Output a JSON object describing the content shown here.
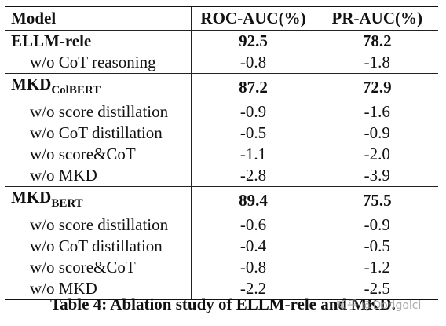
{
  "header": {
    "model": "Model",
    "roc": "ROC-AUC(%)",
    "pr": "PR-AUC(%)"
  },
  "groups": [
    {
      "name": "ELLM-rele",
      "sub": "",
      "roc": "92.5",
      "pr": "78.2",
      "ablations": [
        {
          "label": "w/o CoT reasoning",
          "roc": "-0.8",
          "pr": "-1.8"
        }
      ]
    },
    {
      "name": "MKD",
      "sub": "ColBERT",
      "roc": "87.2",
      "pr": "72.9",
      "ablations": [
        {
          "label": "w/o score distillation",
          "roc": "-0.9",
          "pr": "-1.6"
        },
        {
          "label": "w/o CoT distillation",
          "roc": "-0.5",
          "pr": "-0.9"
        },
        {
          "label": "w/o score&CoT",
          "roc": "-1.1",
          "pr": "-2.0"
        },
        {
          "label": "w/o MKD",
          "roc": "-2.8",
          "pr": "-3.9"
        }
      ]
    },
    {
      "name": "MKD",
      "sub": "BERT",
      "roc": "89.4",
      "pr": "75.5",
      "ablations": [
        {
          "label": "w/o score distillation",
          "roc": "-0.6",
          "pr": "-0.9"
        },
        {
          "label": "w/o CoT distillation",
          "roc": "-0.4",
          "pr": "-0.5"
        },
        {
          "label": "w/o score&CoT",
          "roc": "-0.8",
          "pr": "-1.2"
        },
        {
          "label": "w/o MKD",
          "roc": "-2.2",
          "pr": "-2.5"
        }
      ]
    }
  ],
  "caption": "Table 4: Ablation study of ELLM-rele and MKD.",
  "watermark": "知乎 @Dorigolci"
}
